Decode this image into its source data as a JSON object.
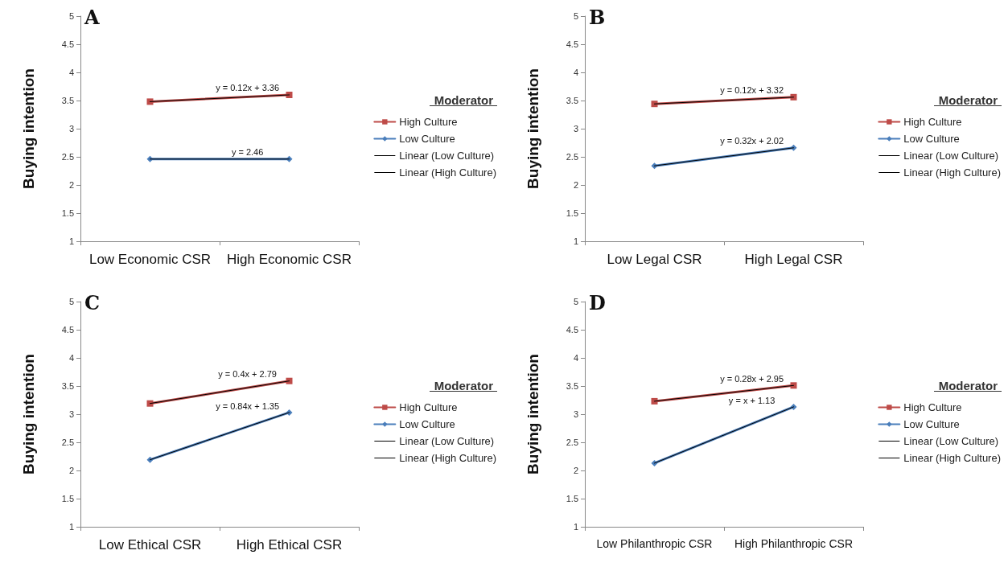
{
  "chart_data": [
    {
      "type": "line",
      "title": "A",
      "ylabel": "Buying intention",
      "legend_title": "Moderator",
      "categories": [
        "Low Economic CSR",
        "High Economic CSR"
      ],
      "ylim": [
        1,
        5
      ],
      "yticks": [
        1,
        1.5,
        2,
        2.5,
        3,
        3.5,
        4,
        4.5,
        5
      ],
      "grid": false,
      "legend": "right",
      "annotations": [
        "y = 0.12x + 3.36",
        "y = 2.46"
      ],
      "series": [
        {
          "name": "High Culture",
          "color": "#be4b48",
          "marker": "square",
          "values": [
            3.48,
            3.6
          ]
        },
        {
          "name": "Low Culture",
          "color": "#4a7ebb",
          "marker": "diamond",
          "values": [
            2.46,
            2.46
          ]
        },
        {
          "name": "Linear (Low Culture)",
          "color": "#000000",
          "marker": "none",
          "values": [
            2.46,
            2.46
          ]
        },
        {
          "name": "Linear (High Culture)",
          "color": "#000000",
          "marker": "none",
          "values": [
            3.48,
            3.6
          ]
        }
      ]
    },
    {
      "type": "line",
      "title": "B",
      "ylabel": "Buying intention",
      "legend_title": "Moderator",
      "categories": [
        "Low Legal CSR",
        "High Legal CSR"
      ],
      "ylim": [
        1,
        5
      ],
      "yticks": [
        1,
        1.5,
        2,
        2.5,
        3,
        3.5,
        4,
        4.5,
        5
      ],
      "grid": false,
      "legend": "right",
      "annotations": [
        "y = 0.12x + 3.32",
        "y = 0.32x + 2.02"
      ],
      "series": [
        {
          "name": "High Culture",
          "color": "#be4b48",
          "marker": "square",
          "values": [
            3.44,
            3.56
          ]
        },
        {
          "name": "Low Culture",
          "color": "#4a7ebb",
          "marker": "diamond",
          "values": [
            2.34,
            2.66
          ]
        },
        {
          "name": "Linear (Low Culture)",
          "color": "#000000",
          "marker": "none",
          "values": [
            2.34,
            2.66
          ]
        },
        {
          "name": "Linear (High Culture)",
          "color": "#000000",
          "marker": "none",
          "values": [
            3.44,
            3.56
          ]
        }
      ]
    },
    {
      "type": "line",
      "title": "C",
      "ylabel": "Buying intention",
      "legend_title": "Moderator",
      "categories": [
        "Low Ethical CSR",
        "High Ethical CSR"
      ],
      "ylim": [
        1,
        5
      ],
      "yticks": [
        1,
        1.5,
        2,
        2.5,
        3,
        3.5,
        4,
        4.5,
        5
      ],
      "grid": false,
      "legend": "right",
      "annotations": [
        "y = 0.4x + 2.79",
        "y = 0.84x + 1.35"
      ],
      "series": [
        {
          "name": "High Culture",
          "color": "#be4b48",
          "marker": "square",
          "values": [
            3.19,
            3.59
          ]
        },
        {
          "name": "Low Culture",
          "color": "#4a7ebb",
          "marker": "diamond",
          "values": [
            2.19,
            3.03
          ]
        },
        {
          "name": "Linear (Low Culture)",
          "color": "#000000",
          "marker": "none",
          "values": [
            2.19,
            3.03
          ]
        },
        {
          "name": "Linear (High Culture)",
          "color": "#000000",
          "marker": "none",
          "values": [
            3.19,
            3.59
          ]
        }
      ]
    },
    {
      "type": "line",
      "title": "D",
      "ylabel": "Buying intention",
      "legend_title": "Moderator",
      "categories": [
        "Low Philanthropic CSR",
        "High Philanthropic CSR"
      ],
      "ylim": [
        1,
        5
      ],
      "yticks": [
        1,
        1.5,
        2,
        2.5,
        3,
        3.5,
        4,
        4.5,
        5
      ],
      "grid": false,
      "legend": "right",
      "annotations": [
        "y = 0.28x + 2.95",
        "y = x + 1.13"
      ],
      "series": [
        {
          "name": "High Culture",
          "color": "#be4b48",
          "marker": "square",
          "values": [
            3.23,
            3.51
          ]
        },
        {
          "name": "Low Culture",
          "color": "#4a7ebb",
          "marker": "diamond",
          "values": [
            2.13,
            3.13
          ]
        },
        {
          "name": "Linear (Low Culture)",
          "color": "#000000",
          "marker": "none",
          "values": [
            2.13,
            3.13
          ]
        },
        {
          "name": "Linear (High Culture)",
          "color": "#000000",
          "marker": "none",
          "values": [
            3.23,
            3.51
          ]
        }
      ]
    }
  ]
}
